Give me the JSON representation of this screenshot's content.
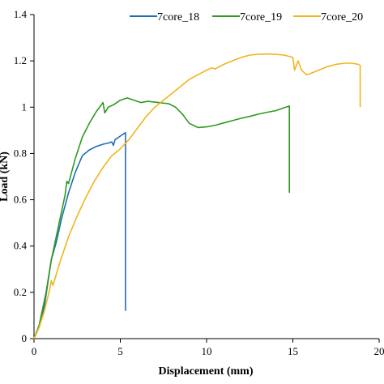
{
  "chart_data": {
    "type": "line",
    "title": "",
    "xlabel": "Displacement (mm)",
    "ylabel": "Load (kN)",
    "xlim": [
      0,
      20
    ],
    "ylim": [
      0,
      1.4
    ],
    "xticks": [
      0,
      5,
      10,
      15,
      20
    ],
    "yticks": [
      0,
      0.2,
      0.4,
      0.6,
      0.8,
      1,
      1.2,
      1.4
    ],
    "grid": false,
    "legend_position": "top",
    "series": [
      {
        "name": "7core_18",
        "color": "#1f6fb2",
        "points": [
          [
            0,
            0
          ],
          [
            0.3,
            0.05
          ],
          [
            0.6,
            0.14
          ],
          [
            1.0,
            0.34
          ],
          [
            1.3,
            0.42
          ],
          [
            1.6,
            0.52
          ],
          [
            2.0,
            0.63
          ],
          [
            2.4,
            0.72
          ],
          [
            2.8,
            0.79
          ],
          [
            3.2,
            0.815
          ],
          [
            3.6,
            0.83
          ],
          [
            4.0,
            0.84
          ],
          [
            4.3,
            0.845
          ],
          [
            4.5,
            0.85
          ],
          [
            4.6,
            0.835
          ],
          [
            4.7,
            0.86
          ],
          [
            5.0,
            0.875
          ],
          [
            5.3,
            0.89
          ],
          [
            5.3,
            0.12
          ]
        ]
      },
      {
        "name": "7core_19",
        "color": "#2e9a1e",
        "points": [
          [
            0,
            0
          ],
          [
            0.3,
            0.06
          ],
          [
            0.7,
            0.2
          ],
          [
            1.0,
            0.34
          ],
          [
            1.4,
            0.48
          ],
          [
            1.8,
            0.62
          ],
          [
            1.9,
            0.68
          ],
          [
            2.0,
            0.67
          ],
          [
            2.4,
            0.78
          ],
          [
            2.8,
            0.87
          ],
          [
            3.2,
            0.93
          ],
          [
            3.6,
            0.98
          ],
          [
            3.9,
            1.01
          ],
          [
            4.0,
            1.02
          ],
          [
            4.1,
            0.975
          ],
          [
            4.3,
            1.0
          ],
          [
            4.6,
            1.01
          ],
          [
            5.0,
            1.03
          ],
          [
            5.4,
            1.04
          ],
          [
            5.8,
            1.03
          ],
          [
            6.2,
            1.02
          ],
          [
            6.6,
            1.025
          ],
          [
            7.2,
            1.02
          ],
          [
            7.8,
            1.015
          ],
          [
            8.2,
            1.0
          ],
          [
            8.6,
            0.97
          ],
          [
            9.0,
            0.93
          ],
          [
            9.5,
            0.912
          ],
          [
            10.0,
            0.915
          ],
          [
            10.5,
            0.922
          ],
          [
            11.0,
            0.932
          ],
          [
            11.5,
            0.942
          ],
          [
            12.0,
            0.952
          ],
          [
            12.5,
            0.96
          ],
          [
            13.0,
            0.97
          ],
          [
            13.5,
            0.978
          ],
          [
            14.0,
            0.985
          ],
          [
            14.4,
            0.995
          ],
          [
            14.8,
            1.005
          ],
          [
            14.8,
            0.63
          ]
        ]
      },
      {
        "name": "7core_20",
        "color": "#f2b41c",
        "points": [
          [
            0,
            0
          ],
          [
            0.3,
            0.05
          ],
          [
            0.6,
            0.12
          ],
          [
            0.9,
            0.21
          ],
          [
            1.0,
            0.25
          ],
          [
            1.1,
            0.23
          ],
          [
            1.5,
            0.33
          ],
          [
            2.0,
            0.44
          ],
          [
            2.5,
            0.53
          ],
          [
            3.0,
            0.61
          ],
          [
            3.5,
            0.68
          ],
          [
            4.0,
            0.74
          ],
          [
            4.5,
            0.79
          ],
          [
            5.0,
            0.82
          ],
          [
            5.5,
            0.86
          ],
          [
            6.0,
            0.91
          ],
          [
            6.5,
            0.96
          ],
          [
            7.0,
            1.0
          ],
          [
            7.5,
            1.03
          ],
          [
            8.0,
            1.06
          ],
          [
            8.5,
            1.09
          ],
          [
            9.0,
            1.12
          ],
          [
            9.5,
            1.14
          ],
          [
            10.0,
            1.16
          ],
          [
            10.3,
            1.17
          ],
          [
            10.5,
            1.165
          ],
          [
            11.0,
            1.185
          ],
          [
            11.5,
            1.2
          ],
          [
            12.0,
            1.215
          ],
          [
            12.5,
            1.225
          ],
          [
            13.0,
            1.228
          ],
          [
            13.5,
            1.23
          ],
          [
            14.0,
            1.228
          ],
          [
            14.5,
            1.225
          ],
          [
            15.0,
            1.215
          ],
          [
            15.1,
            1.16
          ],
          [
            15.3,
            1.2
          ],
          [
            15.5,
            1.16
          ],
          [
            15.8,
            1.14
          ],
          [
            16.0,
            1.145
          ],
          [
            16.5,
            1.16
          ],
          [
            17.0,
            1.175
          ],
          [
            17.5,
            1.185
          ],
          [
            18.0,
            1.19
          ],
          [
            18.4,
            1.19
          ],
          [
            18.8,
            1.185
          ],
          [
            18.9,
            1.18
          ],
          [
            18.9,
            1.0
          ]
        ]
      }
    ]
  }
}
